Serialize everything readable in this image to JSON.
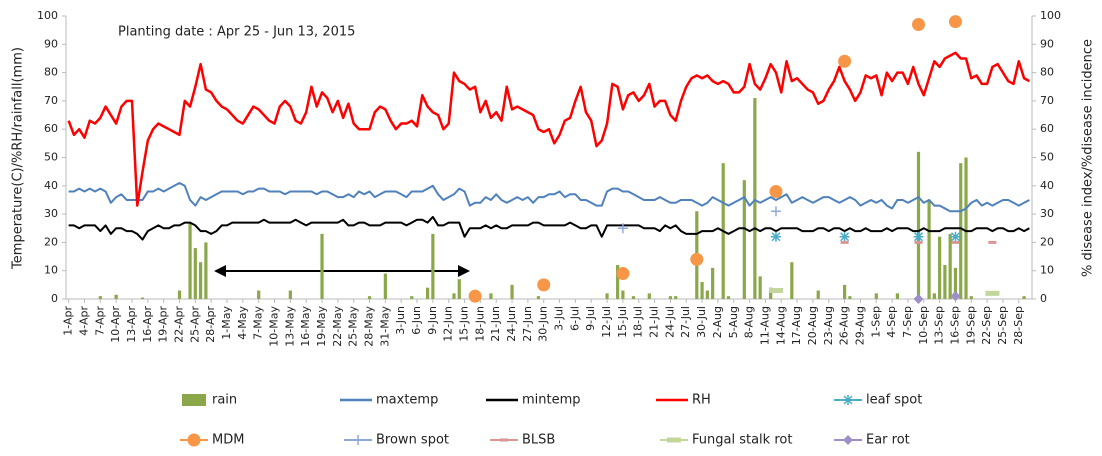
{
  "chart_data": {
    "type": "combo",
    "annotation": "Planting date : Apr 25 - Jun 13, 2015",
    "y_label": "Temperature(C)/%RH/rainfall(mm)",
    "y2_label": "% disease index/%disease incidence",
    "ylim": [
      0,
      100
    ],
    "yticks": [
      0,
      10,
      20,
      30,
      40,
      50,
      60,
      70,
      80,
      90,
      100
    ],
    "y2lim": [
      0,
      100
    ],
    "y2ticks": [
      0,
      10,
      20,
      30,
      40,
      50,
      60,
      70,
      80,
      90,
      100
    ],
    "grid": false,
    "categories": [
      "1-Apr",
      null,
      null,
      "4-Apr",
      null,
      null,
      "7-Apr",
      null,
      null,
      "10-Apr",
      null,
      null,
      "13-Apr",
      null,
      null,
      "16-Apr",
      null,
      null,
      "19-Apr",
      null,
      null,
      "22-Apr",
      null,
      null,
      "25-Apr",
      null,
      null,
      "28-Apr",
      null,
      null,
      "1-May",
      null,
      null,
      "4-May",
      null,
      null,
      "7-May",
      null,
      null,
      "10-May",
      null,
      null,
      "13-May",
      null,
      null,
      "16-May",
      null,
      null,
      "19-May",
      null,
      null,
      "22-May",
      null,
      null,
      "25-May",
      null,
      null,
      "28-May",
      null,
      null,
      "31-May",
      null,
      null,
      "3-Jun",
      null,
      null,
      "6-Jun",
      null,
      null,
      "9-Jun",
      null,
      null,
      "12-Jun",
      null,
      null,
      "15-Jun",
      null,
      null,
      "18-Jun",
      null,
      null,
      "21-Jun",
      null,
      null,
      "24-Jun",
      null,
      null,
      "27-Jun",
      null,
      null,
      "30-Jun",
      null,
      null,
      "3-Jul",
      null,
      null,
      "6-Jul",
      null,
      null,
      "9-Jul",
      null,
      null,
      "12-Jul",
      null,
      null,
      "15-Jul",
      null,
      null,
      "18-Jul",
      null,
      null,
      "21-Jul",
      null,
      null,
      "24-Jul",
      null,
      null,
      "27-Jul",
      null,
      null,
      "30-Jul",
      null,
      null,
      "2-Aug",
      null,
      null,
      "5-Aug",
      null,
      null,
      "8-Aug",
      null,
      null,
      "11-Aug",
      null,
      null,
      "14-Aug",
      null,
      null,
      "17-Aug",
      null,
      null,
      "20-Aug",
      null,
      null,
      "23-Aug",
      null,
      null,
      "26-Aug",
      null,
      null,
      "29-Aug",
      null,
      null,
      "1-Sep",
      null,
      null,
      "4-Sep",
      null,
      null,
      "7-Sep",
      null,
      null,
      "10-Sep",
      null,
      null,
      "13-Sep",
      null,
      null,
      "16-Sep",
      null,
      null,
      "19-Sep",
      null,
      null,
      "22-Sep",
      null,
      null,
      "25-Sep",
      null,
      null,
      "28-Sep",
      null,
      null
    ],
    "series": [
      {
        "name": "rain",
        "type": "bar",
        "color": "#8aa84a",
        "values": [
          0,
          0,
          0,
          0,
          0,
          0,
          1,
          0,
          0,
          1.5,
          0,
          0,
          0,
          0,
          0.5,
          0,
          0,
          0,
          0,
          0,
          0,
          3,
          0,
          27,
          18,
          13,
          20,
          0,
          0,
          0,
          0,
          0,
          0,
          0,
          0,
          0,
          3,
          0,
          0,
          0,
          0,
          0,
          3,
          0,
          0,
          0,
          0,
          0,
          23,
          0,
          0,
          0,
          0,
          0,
          0,
          0,
          0,
          1,
          0,
          0,
          9,
          0,
          0,
          0,
          0,
          1,
          0,
          0,
          4,
          23,
          0,
          0,
          0,
          2,
          7,
          0,
          0,
          0,
          0,
          0,
          2,
          0,
          0,
          0,
          5,
          0,
          0,
          0,
          0,
          1,
          0,
          0,
          0,
          0,
          0,
          0,
          0,
          0,
          0,
          0,
          0,
          0,
          2,
          0,
          12,
          3,
          0,
          1,
          0,
          0,
          2,
          0,
          0,
          0,
          1,
          1,
          0,
          0,
          0,
          31,
          6,
          3,
          11,
          0,
          48,
          1,
          0,
          0,
          42,
          0,
          71,
          8,
          0,
          4,
          0,
          0,
          0,
          13,
          0,
          0,
          0,
          0,
          3,
          0,
          0,
          0,
          0,
          5,
          1,
          0,
          0,
          0,
          0,
          2,
          0,
          0,
          0,
          2,
          0,
          0,
          0,
          52,
          0,
          35,
          2,
          22,
          12,
          23,
          11,
          48,
          50,
          1,
          0,
          0,
          0,
          0,
          0,
          0,
          0,
          0,
          0,
          1,
          0
        ]
      },
      {
        "name": "maxtemp",
        "type": "line",
        "color": "#4f81bd",
        "values": [
          38,
          38,
          39,
          38,
          39,
          38,
          39,
          38,
          34,
          36,
          37,
          35,
          35,
          35,
          35,
          38,
          38,
          39,
          38,
          39,
          40,
          41,
          40,
          35,
          33,
          36,
          35,
          36,
          37,
          38,
          38,
          38,
          38,
          37,
          38,
          38,
          39,
          39,
          38,
          38,
          38,
          37,
          38,
          38,
          38,
          38,
          38,
          37,
          38,
          38,
          37,
          36,
          36,
          37,
          36,
          38,
          37,
          38,
          36,
          37,
          38,
          38,
          38,
          37,
          36,
          38,
          38,
          38,
          39,
          40,
          37,
          35,
          36,
          37,
          39,
          38,
          33,
          34,
          34,
          36,
          35,
          37,
          35,
          34,
          35,
          36,
          35,
          36,
          34,
          36,
          36,
          37,
          37,
          38,
          36,
          37,
          37,
          35,
          35,
          34,
          33,
          33,
          38,
          39,
          39,
          38,
          38,
          37,
          36,
          35,
          35,
          35,
          36,
          35,
          34,
          34,
          35,
          35,
          35,
          34,
          33,
          34,
          36,
          35,
          34,
          33,
          34,
          35,
          36,
          33,
          35,
          34,
          35,
          36,
          35,
          36,
          37,
          34,
          35,
          36,
          35,
          34,
          35,
          36,
          36,
          35,
          34,
          35,
          36,
          35,
          33,
          34,
          35,
          34,
          35,
          33,
          32,
          35,
          35,
          34,
          35,
          36,
          34,
          35,
          33,
          33,
          32,
          31,
          31,
          31,
          32,
          34,
          35,
          33,
          34,
          33,
          34,
          35,
          35,
          34,
          33,
          34,
          35
        ]
      },
      {
        "name": "mintemp",
        "type": "line",
        "color": "#000000",
        "values": [
          26,
          26,
          25,
          26,
          26,
          26,
          24,
          26,
          23,
          25,
          25,
          24,
          24,
          23,
          21,
          24,
          25,
          26,
          25,
          25,
          26,
          26,
          27,
          27,
          26,
          24,
          24,
          23,
          24,
          26,
          26,
          27,
          27,
          27,
          27,
          27,
          27,
          28,
          27,
          27,
          27,
          27,
          27,
          28,
          27,
          26,
          27,
          27,
          27,
          27,
          27,
          27,
          28,
          26,
          26,
          27,
          27,
          26,
          26,
          26,
          27,
          27,
          27,
          27,
          26,
          27,
          28,
          28,
          27,
          29,
          26,
          26,
          27,
          27,
          27,
          22,
          25,
          25,
          25,
          26,
          25,
          26,
          25,
          25,
          26,
          26,
          26,
          26,
          27,
          27,
          26,
          26,
          26,
          26,
          26,
          27,
          26,
          25,
          25,
          26,
          26,
          22,
          26,
          26,
          26,
          26,
          26,
          26,
          26,
          25,
          25,
          25,
          24,
          26,
          25,
          26,
          24,
          23,
          23,
          23,
          24,
          24,
          24,
          25,
          24,
          23,
          24,
          25,
          25,
          24,
          25,
          24,
          25,
          25,
          24,
          25,
          25,
          25,
          25,
          24,
          24,
          24,
          25,
          25,
          24,
          25,
          25,
          24,
          25,
          24,
          24,
          25,
          24,
          24,
          24,
          25,
          24,
          25,
          25,
          25,
          24,
          24,
          25,
          24,
          24,
          24,
          25,
          25,
          25,
          25,
          24,
          24,
          25,
          25,
          25,
          24,
          25,
          25,
          24,
          24,
          25,
          24,
          25
        ]
      },
      {
        "name": "RH",
        "type": "line",
        "color": "#ff0000",
        "values": [
          63,
          58,
          60,
          57,
          63,
          62,
          64,
          68,
          65,
          62,
          68,
          70,
          70,
          33,
          45,
          56,
          60,
          62,
          61,
          60,
          59,
          58,
          70,
          68,
          75,
          83,
          74,
          73,
          70,
          68,
          67,
          65,
          63,
          62,
          65,
          68,
          67,
          65,
          63,
          62,
          68,
          70,
          68,
          63,
          62,
          66,
          75,
          68,
          73,
          71,
          66,
          70,
          64,
          69,
          62,
          60,
          60,
          60,
          66,
          68,
          67,
          63,
          60,
          62,
          62,
          63,
          61,
          72,
          68,
          66,
          65,
          60,
          62,
          80,
          77,
          76,
          74,
          75,
          66,
          70,
          64,
          66,
          63,
          75,
          67,
          68,
          67,
          66,
          65,
          60,
          59,
          60,
          55,
          58,
          63,
          64,
          70,
          75,
          66,
          63,
          54,
          56,
          62,
          76,
          75,
          67,
          72,
          73,
          70,
          72,
          76,
          68,
          70,
          70,
          65,
          63,
          70,
          75,
          78,
          79,
          78,
          79,
          77,
          76,
          77,
          76,
          73,
          73,
          75,
          83,
          76,
          74,
          78,
          83,
          80,
          73,
          84,
          77,
          78,
          76,
          74,
          73,
          69,
          70,
          74,
          77,
          82,
          77,
          74,
          70,
          73,
          79,
          78,
          79,
          72,
          80,
          77,
          80,
          80,
          76,
          82,
          76,
          72,
          78,
          84,
          82,
          85,
          86,
          87,
          85,
          85,
          78,
          79,
          76,
          76,
          82,
          83,
          80,
          77,
          76,
          84,
          78,
          77
        ]
      },
      {
        "name": "leaf spot",
        "type": "scatter",
        "marker": "star",
        "axis": "y2",
        "color": "#4bacc6",
        "x": [
          "13-Aug",
          "26-Aug",
          "9-Sep",
          "16-Sep"
        ],
        "values": [
          22,
          22,
          22,
          22
        ]
      },
      {
        "name": "MDM",
        "type": "scatter",
        "marker": "circle",
        "axis": "y2",
        "color": "#f79646",
        "x": [
          "17-Jun",
          "30-Jun",
          "15-Jul",
          "29-Jul",
          "13-Aug",
          "26-Aug",
          "9-Sep",
          "16-Sep"
        ],
        "values": [
          1,
          5,
          9,
          14,
          38,
          84,
          97,
          98
        ]
      },
      {
        "name": "Brown spot",
        "type": "scatter",
        "marker": "plus",
        "axis": "y2",
        "color": "#8eaadb",
        "x": [
          "15-Jul",
          "13-Aug"
        ],
        "values": [
          25,
          31
        ]
      },
      {
        "name": "BLSB",
        "type": "scatter",
        "marker": "dash",
        "axis": "y2",
        "color": "#d99694",
        "x": [
          "26-Aug",
          "9-Sep",
          "16-Sep",
          "23-Sep"
        ],
        "values": [
          20,
          20,
          20,
          20
        ]
      },
      {
        "name": "Fungal stalk rot",
        "type": "scatter",
        "marker": "wide-dash",
        "axis": "y2",
        "color": "#c3d69b",
        "x": [
          "13-Aug",
          "23-Sep"
        ],
        "values": [
          3,
          2
        ]
      },
      {
        "name": "Ear rot",
        "type": "scatter",
        "marker": "diamond",
        "axis": "y2",
        "color": "#9f8fc8",
        "x": [
          "9-Sep",
          "16-Sep"
        ],
        "values": [
          0,
          1
        ]
      }
    ]
  }
}
